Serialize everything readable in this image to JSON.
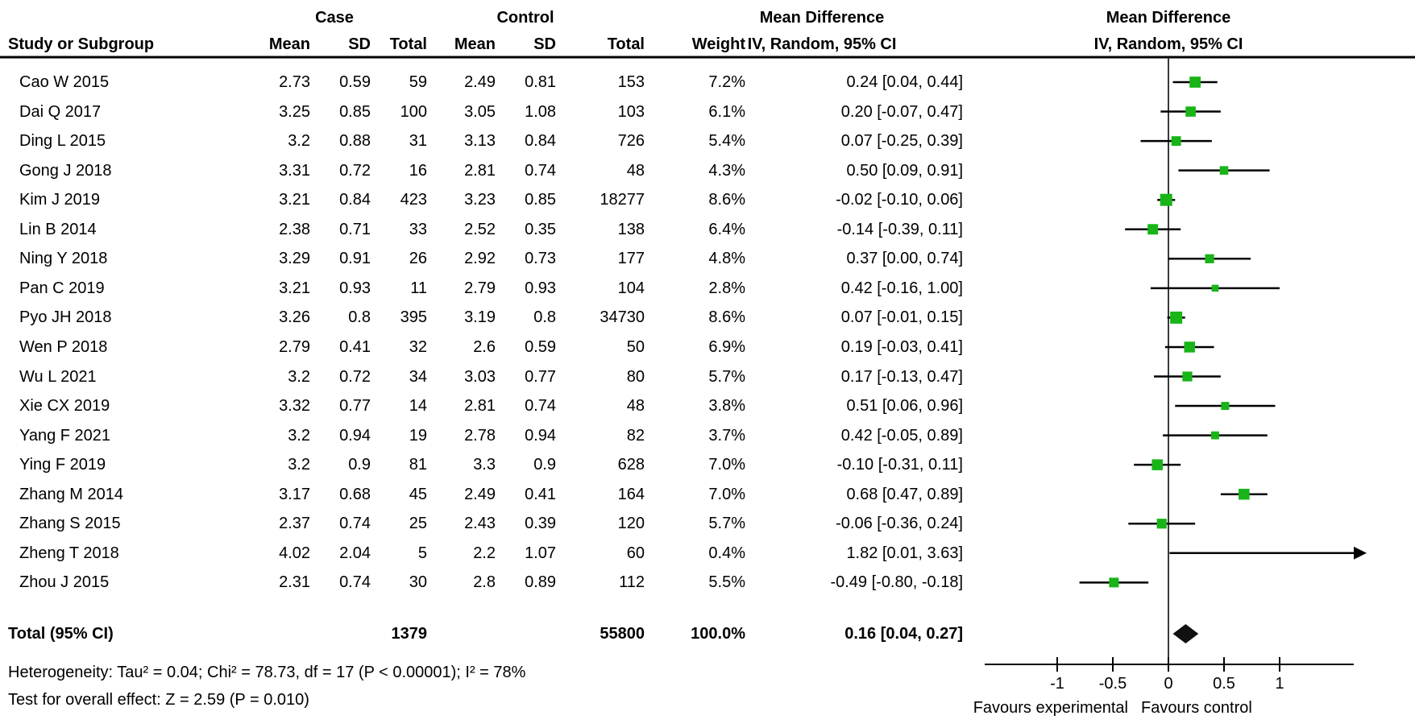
{
  "chart_data": {
    "type": "forest",
    "title": "Mean Difference meta-analysis (IV, Random, 95% CI)",
    "headers": {
      "study": "Study or Subgroup",
      "case_group": "Case",
      "control_group": "Control",
      "mean": "Mean",
      "sd": "SD",
      "total": "Total",
      "weight": "Weight",
      "md_text_title": "Mean Difference",
      "md_text_sub": "IV, Random, 95% CI",
      "md_plot_title": "Mean Difference",
      "md_plot_sub": "IV, Random, 95% CI"
    },
    "studies": [
      {
        "name": "Cao W 2015",
        "case_mean": "2.73",
        "case_sd": "0.59",
        "case_total": "59",
        "ctrl_mean": "2.49",
        "ctrl_sd": "0.81",
        "ctrl_total": "153",
        "weight": "7.2%",
        "ci": "0.24 [0.04, 0.44]",
        "est": 0.24,
        "lo": 0.04,
        "hi": 0.44,
        "w": 7.2
      },
      {
        "name": "Dai Q 2017",
        "case_mean": "3.25",
        "case_sd": "0.85",
        "case_total": "100",
        "ctrl_mean": "3.05",
        "ctrl_sd": "1.08",
        "ctrl_total": "103",
        "weight": "6.1%",
        "ci": "0.20 [-0.07, 0.47]",
        "est": 0.2,
        "lo": -0.07,
        "hi": 0.47,
        "w": 6.1
      },
      {
        "name": "Ding L 2015",
        "case_mean": "3.2",
        "case_sd": "0.88",
        "case_total": "31",
        "ctrl_mean": "3.13",
        "ctrl_sd": "0.84",
        "ctrl_total": "726",
        "weight": "5.4%",
        "ci": "0.07 [-0.25, 0.39]",
        "est": 0.07,
        "lo": -0.25,
        "hi": 0.39,
        "w": 5.4
      },
      {
        "name": "Gong J 2018",
        "case_mean": "3.31",
        "case_sd": "0.72",
        "case_total": "16",
        "ctrl_mean": "2.81",
        "ctrl_sd": "0.74",
        "ctrl_total": "48",
        "weight": "4.3%",
        "ci": "0.50 [0.09, 0.91]",
        "est": 0.5,
        "lo": 0.09,
        "hi": 0.91,
        "w": 4.3
      },
      {
        "name": "Kim J 2019",
        "case_mean": "3.21",
        "case_sd": "0.84",
        "case_total": "423",
        "ctrl_mean": "3.23",
        "ctrl_sd": "0.85",
        "ctrl_total": "18277",
        "weight": "8.6%",
        "ci": "-0.02 [-0.10, 0.06]",
        "est": -0.02,
        "lo": -0.1,
        "hi": 0.06,
        "w": 8.6
      },
      {
        "name": "Lin B 2014",
        "case_mean": "2.38",
        "case_sd": "0.71",
        "case_total": "33",
        "ctrl_mean": "2.52",
        "ctrl_sd": "0.35",
        "ctrl_total": "138",
        "weight": "6.4%",
        "ci": "-0.14 [-0.39, 0.11]",
        "est": -0.14,
        "lo": -0.39,
        "hi": 0.11,
        "w": 6.4
      },
      {
        "name": "Ning Y 2018",
        "case_mean": "3.29",
        "case_sd": "0.91",
        "case_total": "26",
        "ctrl_mean": "2.92",
        "ctrl_sd": "0.73",
        "ctrl_total": "177",
        "weight": "4.8%",
        "ci": "0.37 [0.00, 0.74]",
        "est": 0.37,
        "lo": 0.0,
        "hi": 0.74,
        "w": 4.8
      },
      {
        "name": "Pan C 2019",
        "case_mean": "3.21",
        "case_sd": "0.93",
        "case_total": "11",
        "ctrl_mean": "2.79",
        "ctrl_sd": "0.93",
        "ctrl_total": "104",
        "weight": "2.8%",
        "ci": "0.42 [-0.16, 1.00]",
        "est": 0.42,
        "lo": -0.16,
        "hi": 1.0,
        "w": 2.8
      },
      {
        "name": "Pyo JH 2018",
        "case_mean": "3.26",
        "case_sd": "0.8",
        "case_total": "395",
        "ctrl_mean": "3.19",
        "ctrl_sd": "0.8",
        "ctrl_total": "34730",
        "weight": "8.6%",
        "ci": "0.07 [-0.01, 0.15]",
        "est": 0.07,
        "lo": -0.01,
        "hi": 0.15,
        "w": 8.6
      },
      {
        "name": "Wen P 2018",
        "case_mean": "2.79",
        "case_sd": "0.41",
        "case_total": "32",
        "ctrl_mean": "2.6",
        "ctrl_sd": "0.59",
        "ctrl_total": "50",
        "weight": "6.9%",
        "ci": "0.19 [-0.03, 0.41]",
        "est": 0.19,
        "lo": -0.03,
        "hi": 0.41,
        "w": 6.9
      },
      {
        "name": "Wu L 2021",
        "case_mean": "3.2",
        "case_sd": "0.72",
        "case_total": "34",
        "ctrl_mean": "3.03",
        "ctrl_sd": "0.77",
        "ctrl_total": "80",
        "weight": "5.7%",
        "ci": "0.17 [-0.13, 0.47]",
        "est": 0.17,
        "lo": -0.13,
        "hi": 0.47,
        "w": 5.7
      },
      {
        "name": "Xie CX 2019",
        "case_mean": "3.32",
        "case_sd": "0.77",
        "case_total": "14",
        "ctrl_mean": "2.81",
        "ctrl_sd": "0.74",
        "ctrl_total": "48",
        "weight": "3.8%",
        "ci": "0.51 [0.06, 0.96]",
        "est": 0.51,
        "lo": 0.06,
        "hi": 0.96,
        "w": 3.8
      },
      {
        "name": "Yang F 2021",
        "case_mean": "3.2",
        "case_sd": "0.94",
        "case_total": "19",
        "ctrl_mean": "2.78",
        "ctrl_sd": "0.94",
        "ctrl_total": "82",
        "weight": "3.7%",
        "ci": "0.42 [-0.05, 0.89]",
        "est": 0.42,
        "lo": -0.05,
        "hi": 0.89,
        "w": 3.7
      },
      {
        "name": "Ying F 2019",
        "case_mean": "3.2",
        "case_sd": "0.9",
        "case_total": "81",
        "ctrl_mean": "3.3",
        "ctrl_sd": "0.9",
        "ctrl_total": "628",
        "weight": "7.0%",
        "ci": "-0.10 [-0.31, 0.11]",
        "est": -0.1,
        "lo": -0.31,
        "hi": 0.11,
        "w": 7.0
      },
      {
        "name": "Zhang M 2014",
        "case_mean": "3.17",
        "case_sd": "0.68",
        "case_total": "45",
        "ctrl_mean": "2.49",
        "ctrl_sd": "0.41",
        "ctrl_total": "164",
        "weight": "7.0%",
        "ci": "0.68 [0.47, 0.89]",
        "est": 0.68,
        "lo": 0.47,
        "hi": 0.89,
        "w": 7.0
      },
      {
        "name": "Zhang S 2015",
        "case_mean": "2.37",
        "case_sd": "0.74",
        "case_total": "25",
        "ctrl_mean": "2.43",
        "ctrl_sd": "0.39",
        "ctrl_total": "120",
        "weight": "5.7%",
        "ci": "-0.06 [-0.36, 0.24]",
        "est": -0.06,
        "lo": -0.36,
        "hi": 0.24,
        "w": 5.7
      },
      {
        "name": "Zheng T 2018",
        "case_mean": "4.02",
        "case_sd": "2.04",
        "case_total": "5",
        "ctrl_mean": "2.2",
        "ctrl_sd": "1.07",
        "ctrl_total": "60",
        "weight": "0.4%",
        "ci": "1.82 [0.01, 3.63]",
        "est": 1.82,
        "lo": 0.01,
        "hi": 3.63,
        "w": 0.4
      },
      {
        "name": "Zhou J 2015",
        "case_mean": "2.31",
        "case_sd": "0.74",
        "case_total": "30",
        "ctrl_mean": "2.8",
        "ctrl_sd": "0.89",
        "ctrl_total": "112",
        "weight": "5.5%",
        "ci": "-0.49 [-0.80, -0.18]",
        "est": -0.49,
        "lo": -0.8,
        "hi": -0.18,
        "w": 5.5
      }
    ],
    "total": {
      "label": "Total (95% CI)",
      "case_total": "1379",
      "ctrl_total": "55800",
      "weight": "100.0%",
      "ci": "0.16 [0.04, 0.27]",
      "est": 0.16,
      "lo": 0.04,
      "hi": 0.27
    },
    "footer": {
      "heterogeneity": "Heterogeneity: Tau² = 0.04; Chi² = 78.73, df = 17 (P < 0.00001); I² = 78%",
      "overall_effect": "Test for overall effect: Z = 2.59 (P = 0.010)"
    },
    "axis": {
      "ticks": [
        -1,
        -0.5,
        0,
        0.5,
        1
      ],
      "tick_labels": [
        "-1",
        "-0.5",
        "0",
        "0.5",
        "1"
      ],
      "range_min": -1.65,
      "range_max": 1.67,
      "favours_left": "Favours experimental",
      "favours_right": "Favours control"
    },
    "colors": {
      "marker_green": "#18b418",
      "line_black": "#000000",
      "zero_line_gray": "#3a3a3a",
      "diamond_black": "#111111"
    }
  }
}
